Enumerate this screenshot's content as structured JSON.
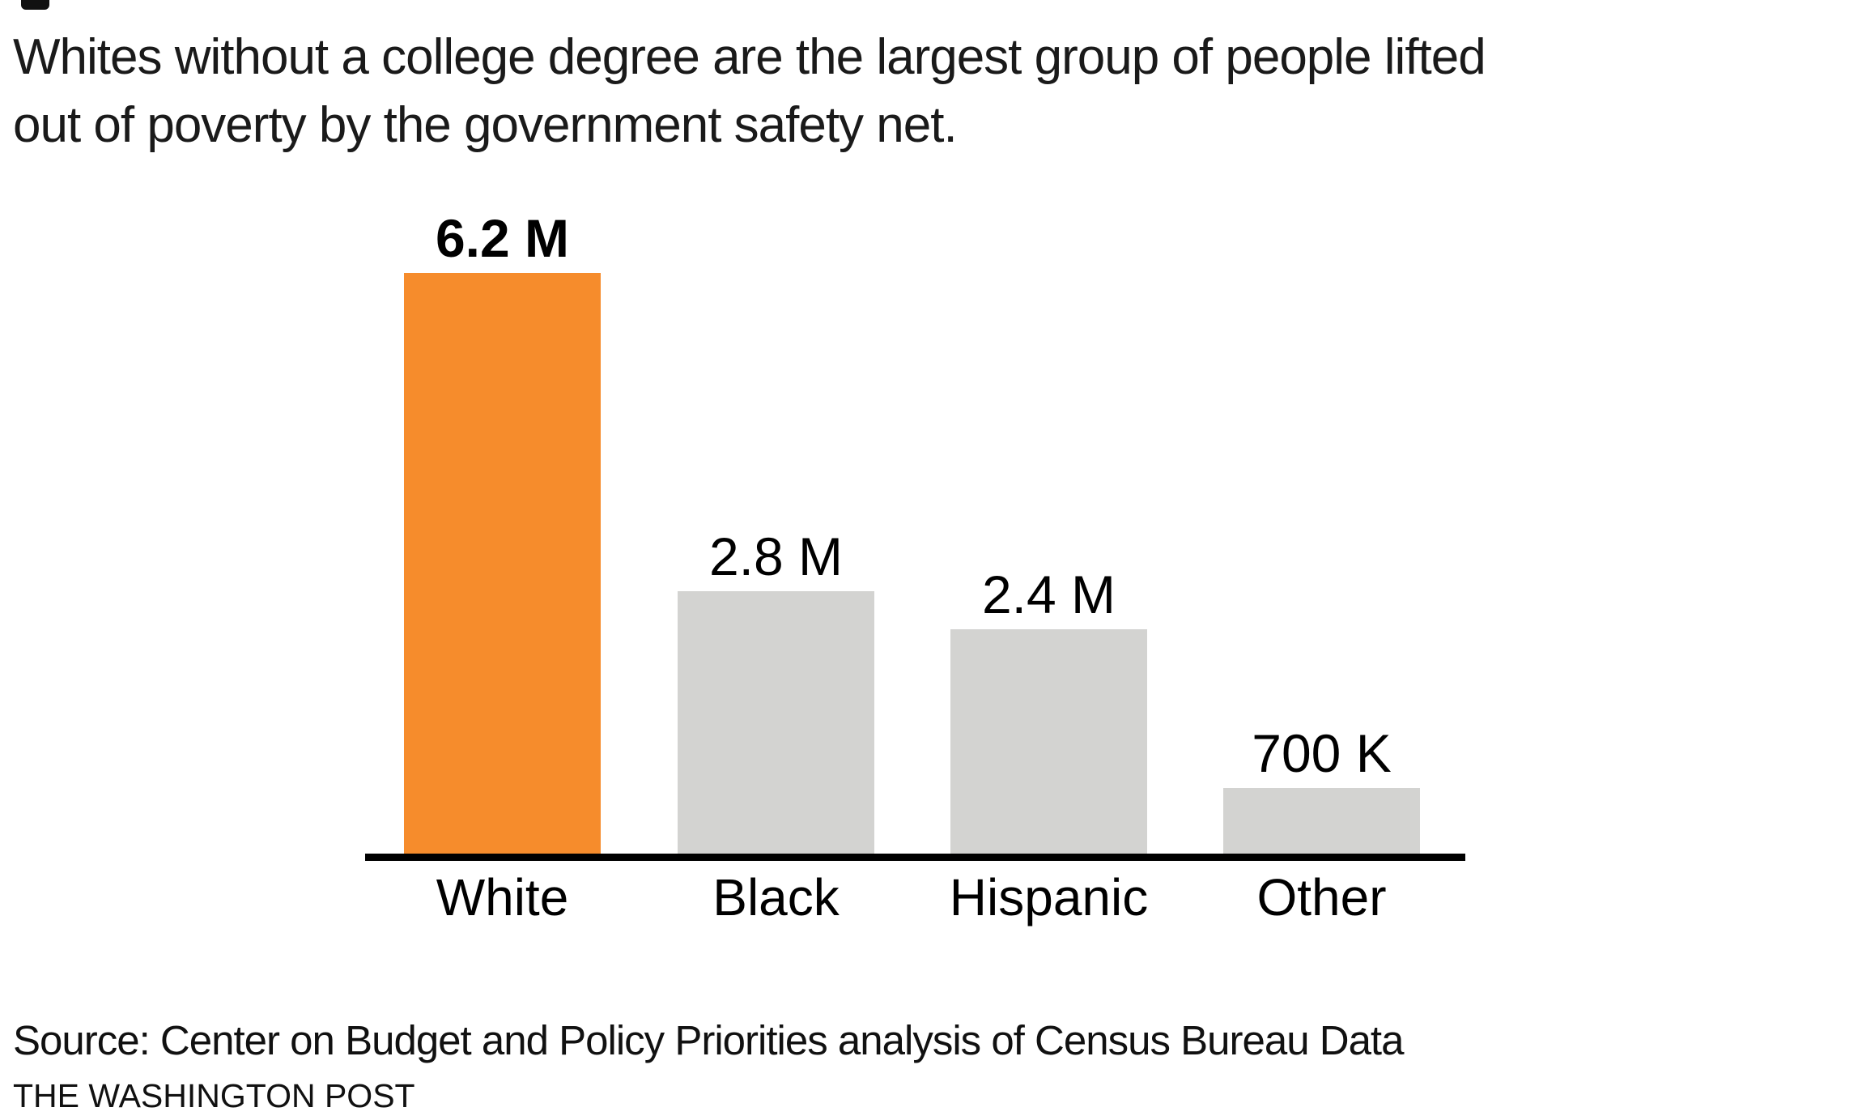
{
  "title": {
    "line1": "Whites without a college degree are the largest group of people lifted",
    "line2": "out of poverty by the government safety net."
  },
  "footer": {
    "source": "Source: Center on Budget and Policy Priorities analysis of Census Bureau Data",
    "credit": "THE WASHINGTON POST"
  },
  "chart_data": {
    "type": "bar",
    "title": "Whites without a college degree are the largest group of people lifted out of poverty by the government safety net.",
    "categories": [
      "White",
      "Black",
      "Hispanic",
      "Other"
    ],
    "values": [
      6.2,
      2.8,
      2.4,
      0.7
    ],
    "unit": "millions of people",
    "value_labels": [
      "6.2 M",
      "2.8 M",
      "2.4 M",
      "700 K"
    ],
    "highlight_index": 0,
    "colors": {
      "highlight": "#F68C2C",
      "default": "#D3D3D1",
      "axis": "#000000"
    },
    "xlabel": "",
    "ylabel": "",
    "legend": "none",
    "grid": false,
    "source": "Source: Center on Budget and Policy Priorities analysis of Census Bureau Data",
    "credit": "THE WASHINGTON POST"
  }
}
